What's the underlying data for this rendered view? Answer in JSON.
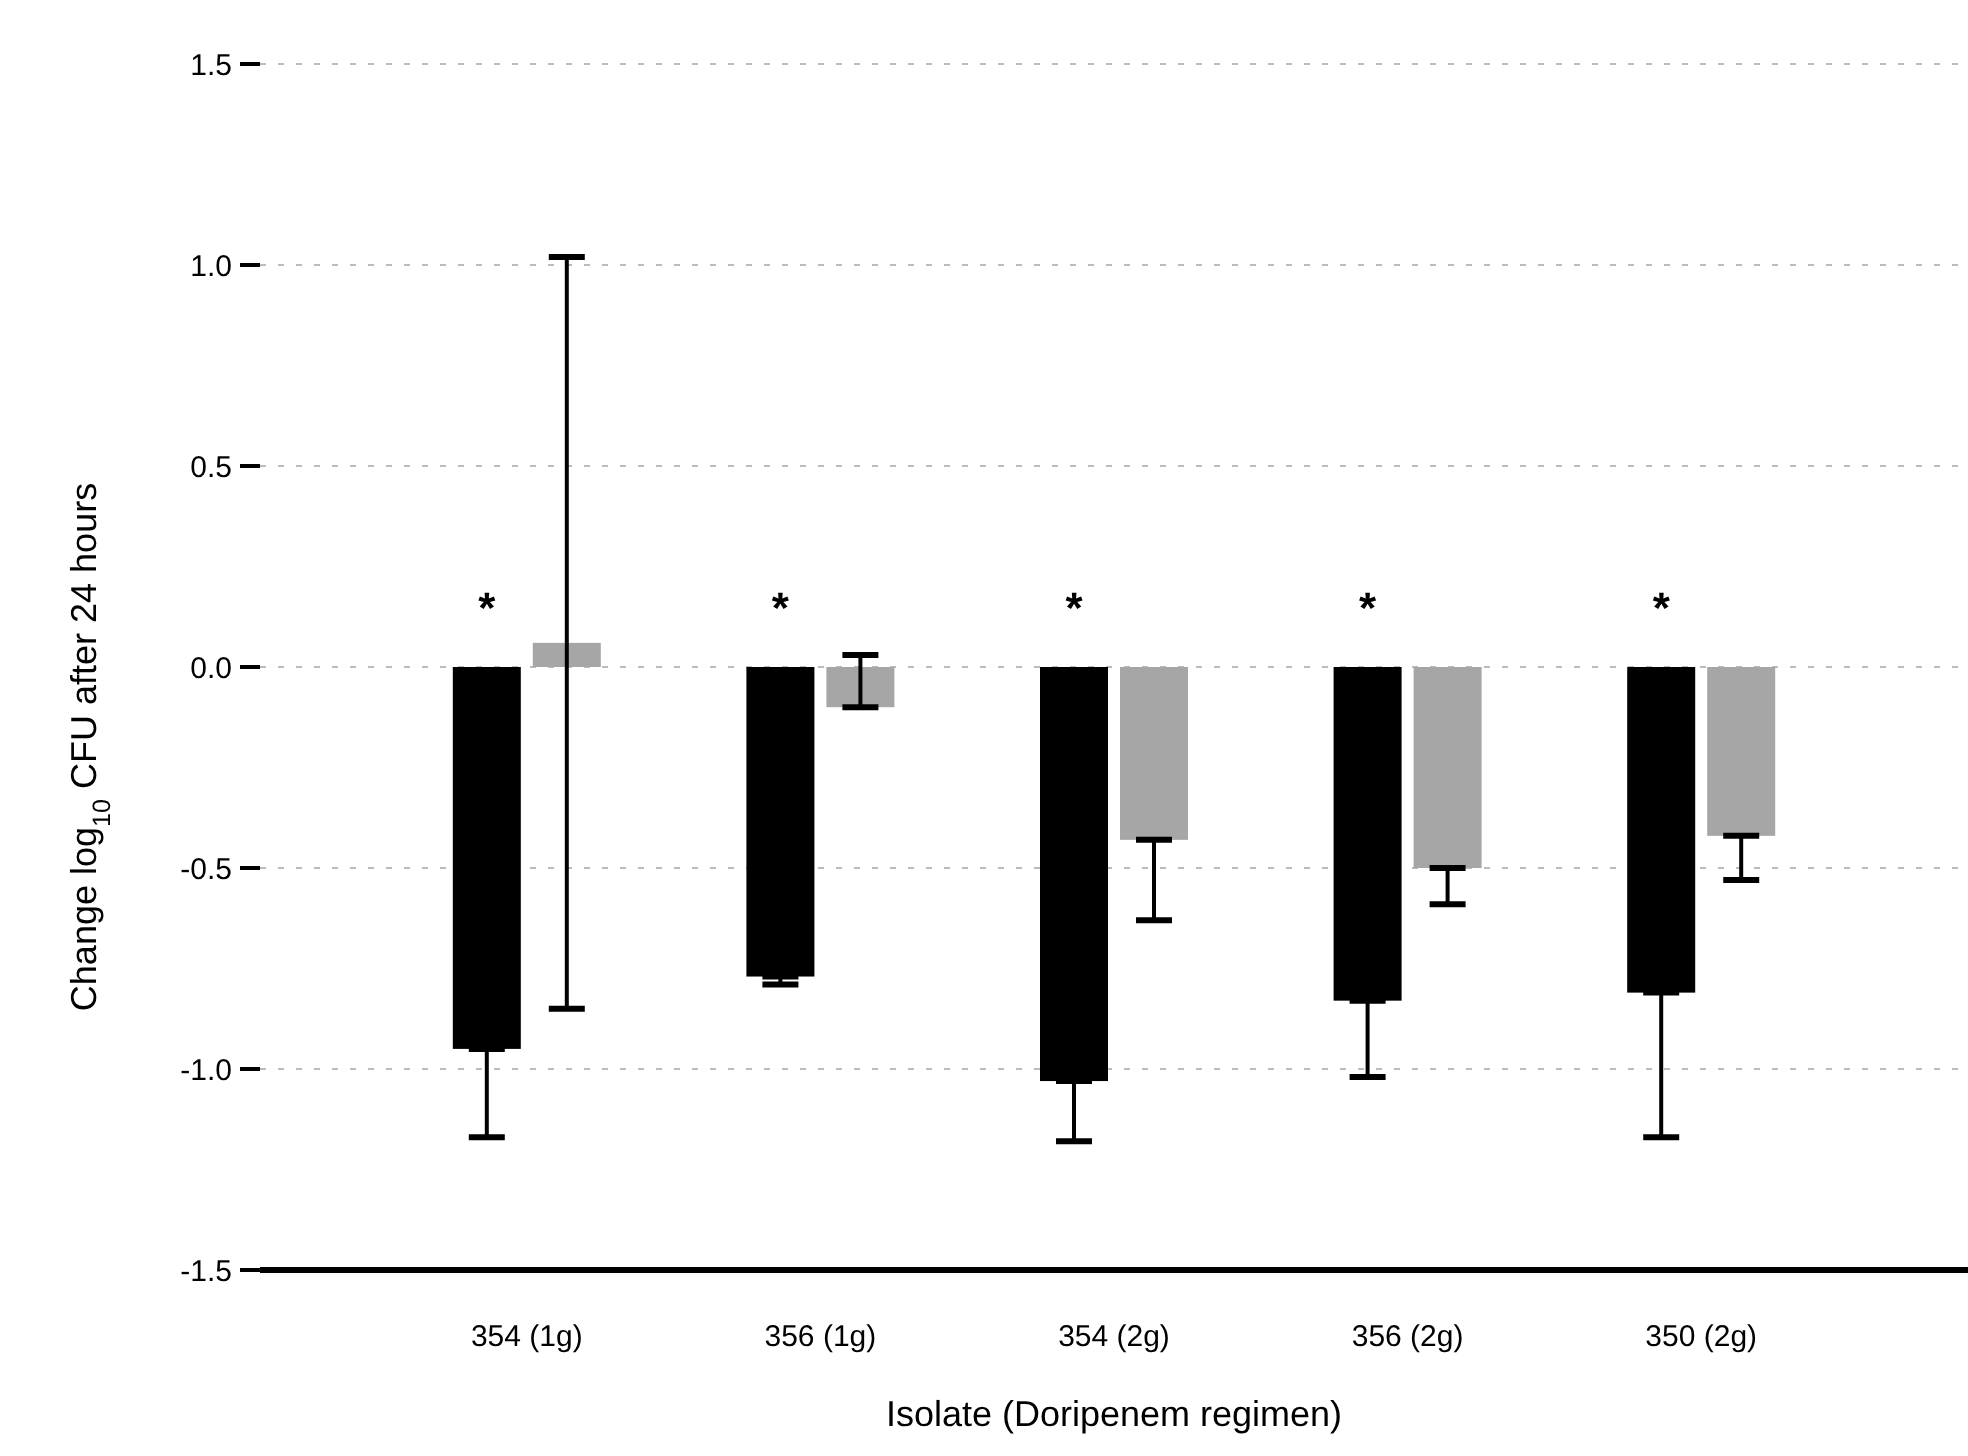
{
  "chart_data": {
    "type": "bar",
    "xlabel": "Isolate (Doripenem regimen)",
    "ylabel": "Change log$_{10}$ CFU after 24 hours",
    "categories": [
      "354 (1g)",
      "356 (1g)",
      "354 (2g)",
      "356 (2g)",
      "350 (2g)"
    ],
    "series": [
      {
        "color": "#000000",
        "values": [
          -0.95,
          -0.77,
          -1.03,
          -0.83,
          -0.81
        ],
        "errors": [
          [
            -1.17,
            -0.95
          ],
          [
            -0.79,
            -0.77
          ],
          [
            -1.18,
            -1.03
          ],
          [
            -1.02,
            -0.83
          ],
          [
            -1.17,
            -0.81
          ]
        ]
      },
      {
        "color": "#a6a6a6",
        "values": [
          0.06,
          -0.1,
          -0.43,
          -0.5,
          -0.42
        ],
        "errors": [
          [
            -0.85,
            1.02
          ],
          [
            -0.1,
            0.03
          ],
          [
            -0.63,
            -0.43
          ],
          [
            -0.59,
            -0.5
          ],
          [
            -0.53,
            -0.42
          ]
        ]
      }
    ],
    "ylim": [
      -1.5,
      1.5
    ],
    "yticks": [
      {
        "value": -1.5,
        "label": "-1.5"
      },
      {
        "value": -1,
        "label": "-1.0"
      },
      {
        "value": -0.5,
        "label": "-0.5"
      },
      {
        "value": 0,
        "label": "0.0"
      },
      {
        "value": 0.5,
        "label": "0.5"
      },
      {
        "value": 1,
        "label": "1.0"
      },
      {
        "value": 1.5,
        "label": "1.5"
      }
    ],
    "grid": "y",
    "annotations": [
      "*",
      "*",
      "*",
      "*",
      "*"
    ]
  }
}
